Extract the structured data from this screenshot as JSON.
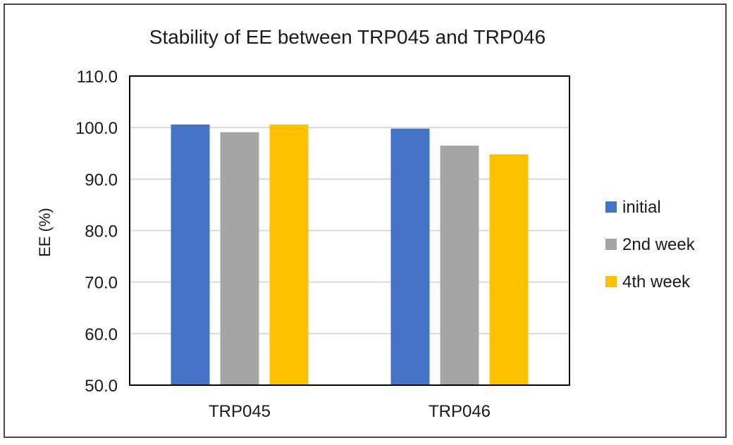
{
  "chart_data": {
    "type": "bar",
    "title": "Stability of EE between TRP045 and TRP046",
    "xlabel": "",
    "ylabel": "EE (%)",
    "categories": [
      "TRP045",
      "TRP046"
    ],
    "series": [
      {
        "name": "initial",
        "values": [
          100.6,
          99.8
        ],
        "color": "#4472C4"
      },
      {
        "name": "2nd week",
        "values": [
          99.1,
          96.5
        ],
        "color": "#A5A5A5"
      },
      {
        "name": "4th week",
        "values": [
          100.6,
          94.8
        ],
        "color": "#FFC000"
      }
    ],
    "ylim": [
      50.0,
      110.0
    ],
    "yticks": [
      "50.0",
      "60.0",
      "70.0",
      "80.0",
      "90.0",
      "100.0",
      "110.0"
    ],
    "grid": true,
    "legend_position": "right"
  }
}
